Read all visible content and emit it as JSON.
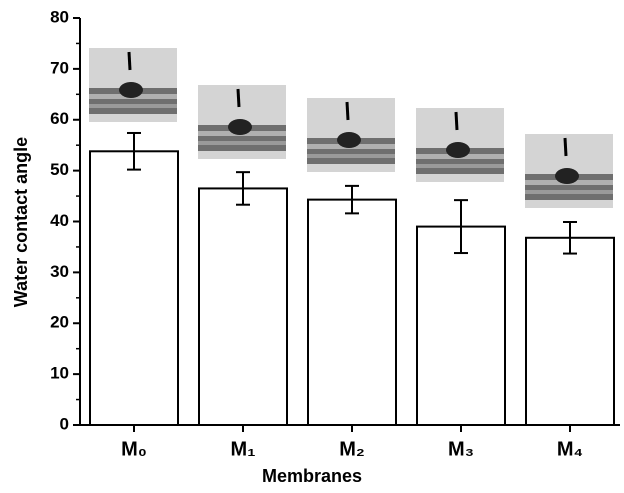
{
  "chart_data": {
    "type": "bar",
    "x_label": "Membranes",
    "y_label": "Water contact angle",
    "categories": [
      "M₀",
      "M₁",
      "M₂",
      "M₃",
      "M₄"
    ],
    "values": [
      53.8,
      46.5,
      44.3,
      39.0,
      36.8
    ],
    "errors": [
      3.6,
      3.2,
      2.7,
      5.2,
      3.1
    ],
    "color": "#ffffff",
    "edge_color": "#000000",
    "ylim": [
      0,
      80
    ],
    "yticks": [
      0,
      10,
      20,
      30,
      40,
      50,
      60,
      70,
      80
    ],
    "grid": false
  }
}
